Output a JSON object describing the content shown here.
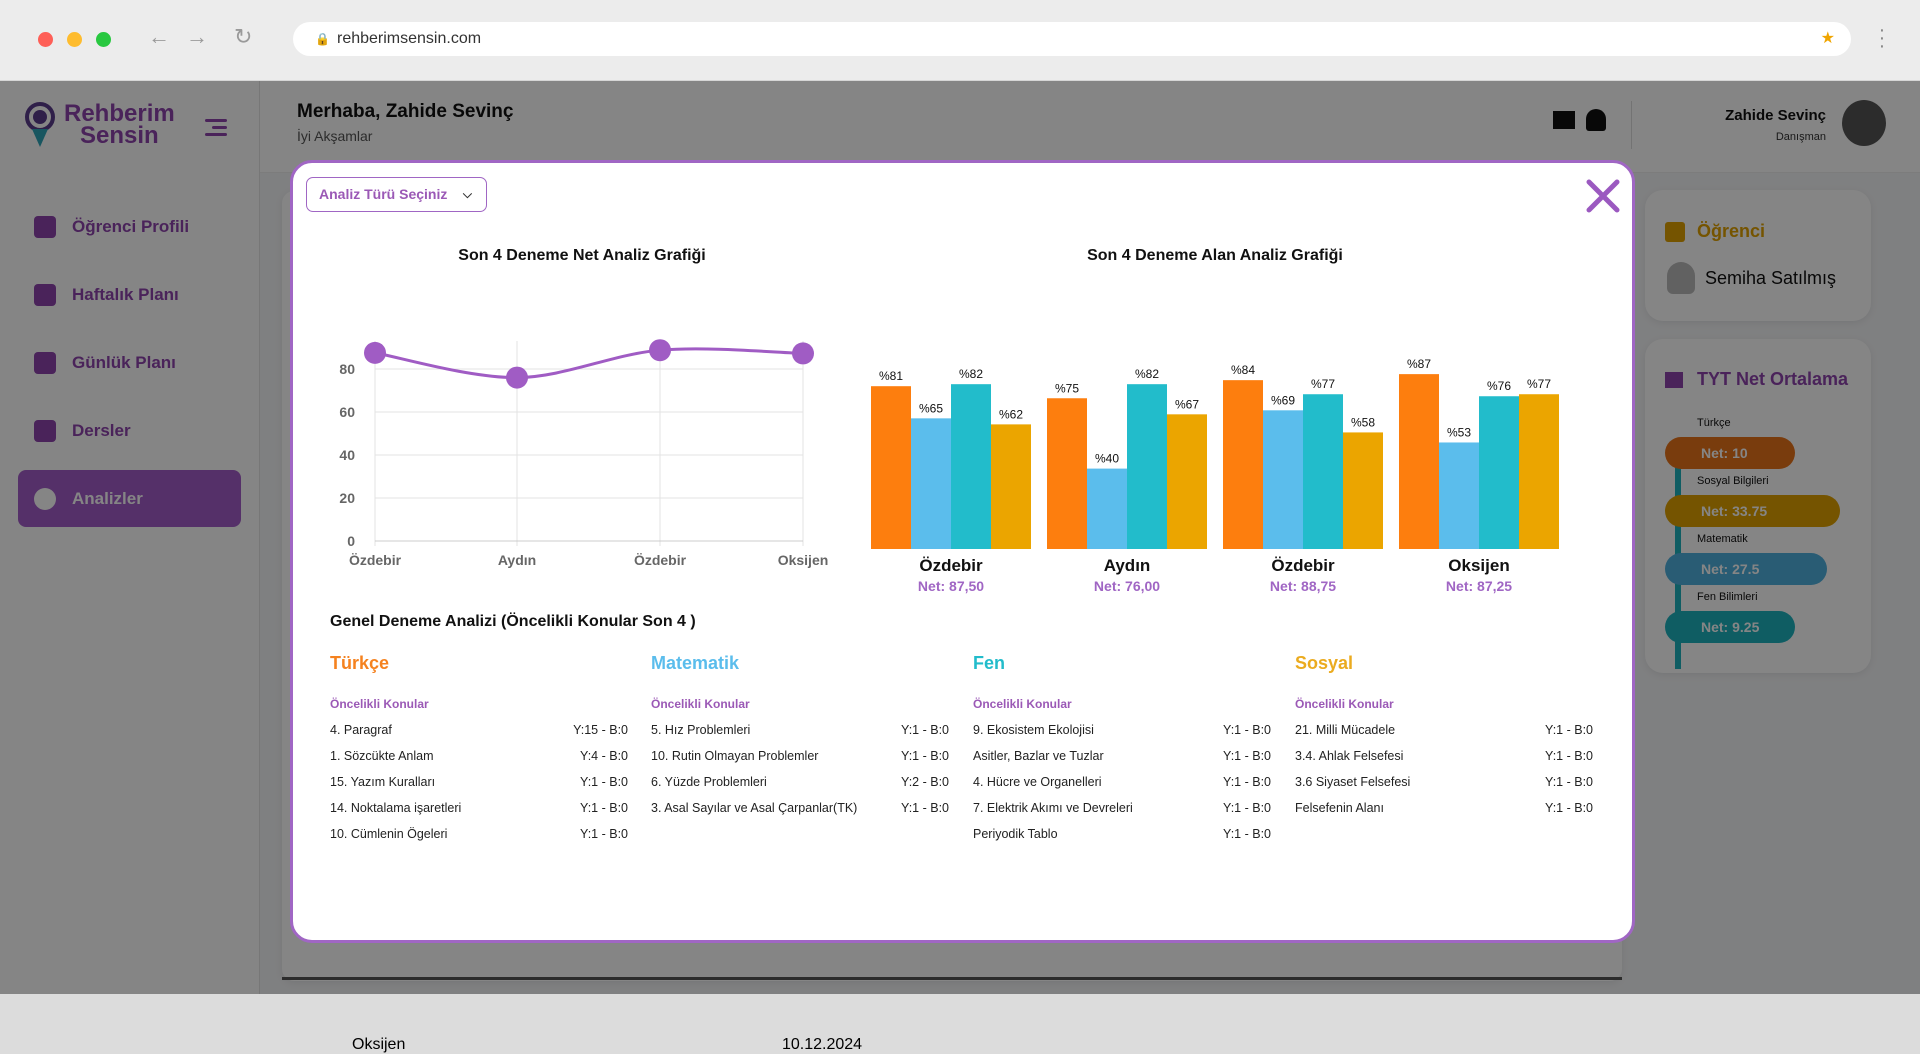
{
  "browser": {
    "url": "rehberimsensin.com"
  },
  "sidebar": {
    "logo_line1": "Rehberim",
    "logo_line2": "Sensin",
    "items": [
      {
        "label": "Öğrenci Profili"
      },
      {
        "label": "Haftalık Planı"
      },
      {
        "label": "Günlük Planı"
      },
      {
        "label": "Dersler"
      },
      {
        "label": "Analizler",
        "active": true
      }
    ]
  },
  "header": {
    "greeting": "Merhaba, Zahide Sevinç",
    "subtitle": "İyi Akşamlar",
    "user_name": "Zahide Sevinç",
    "user_role": "Danışman"
  },
  "right_panel": {
    "student_title": "Öğrenci",
    "student_name": "Semiha Satılmış",
    "net_title": "TYT Net Ortalama",
    "nets": [
      {
        "label": "Türkçe",
        "value": "Net: 10",
        "color": "#e8731a"
      },
      {
        "label": "Sosyal Bilgileri",
        "value": "Net: 33.75",
        "color": "#e0a100"
      },
      {
        "label": "Matematik",
        "value": "Net: 27.5",
        "color": "#4fb0de"
      },
      {
        "label": "Fen Bilimleri",
        "value": "Net: 9.25",
        "color": "#1eb3bf"
      }
    ]
  },
  "background_row": {
    "exam": "Oksijen",
    "date": "10.12.2024"
  },
  "modal": {
    "dropdown_label": "Analiz Türü Seçiniz",
    "general_title": "Genel Deneme Analizi (Öncelikli Konular Son 4 )",
    "priority_label": "Öncelikli Konular",
    "subjects": [
      {
        "name": "Türkçe",
        "color": "#f5821f",
        "topics": [
          [
            "4. Paragraf",
            "Y:15 - B:0"
          ],
          [
            "1. Sözcükte Anlam",
            "Y:4 - B:0"
          ],
          [
            "15. Yazım Kuralları",
            "Y:1 - B:0"
          ],
          [
            "14. Noktalama işaretleri",
            "Y:1 - B:0"
          ],
          [
            "10. Cümlenin Ögeleri",
            "Y:1 - B:0"
          ]
        ]
      },
      {
        "name": "Matematik",
        "color": "#5bbdec",
        "topics": [
          [
            "5. Hız Problemleri",
            "Y:1 - B:0"
          ],
          [
            "10. Rutin Olmayan Problemler",
            "Y:1 - B:0"
          ],
          [
            "6. Yüzde Problemleri",
            "Y:2 - B:0"
          ],
          [
            "3. Asal Sayılar ve Asal Çarpanlar(TK)",
            "Y:1 - B:0"
          ]
        ]
      },
      {
        "name": "Fen",
        "color": "#22bccb",
        "topics": [
          [
            "9. Ekosistem Ekolojisi",
            "Y:1 - B:0"
          ],
          [
            "Asitler, Bazlar ve Tuzlar",
            "Y:1 - B:0"
          ],
          [
            "4. Hücre ve Organelleri",
            "Y:1 - B:0"
          ],
          [
            "7. Elektrik Akımı ve Devreleri",
            "Y:1 - B:0"
          ],
          [
            "Periyodik Tablo",
            "Y:1 - B:0"
          ]
        ]
      },
      {
        "name": "Sosyal",
        "color": "#ebab1f",
        "topics": [
          [
            "21. Milli Mücadele",
            "Y:1 - B:0"
          ],
          [
            "3.4. Ahlak Felsefesi",
            "Y:1 - B:0"
          ],
          [
            "3.6 Siyaset Felsefesi",
            "Y:1 - B:0"
          ],
          [
            "Felsefenin Alanı",
            "Y:1 - B:0"
          ]
        ]
      }
    ]
  },
  "chart_data": [
    {
      "type": "line",
      "title": "Son 4 Deneme Net Analiz Grafiği",
      "categories": [
        "Özdebir",
        "Aydın",
        "Özdebir",
        "Oksijen"
      ],
      "values": [
        87.5,
        76,
        88.75,
        87.25
      ],
      "ylim": [
        0,
        90
      ],
      "yticks": [
        0,
        20,
        40,
        60,
        80
      ],
      "grid": true,
      "color": "#a05cc4"
    },
    {
      "type": "bar",
      "title": "Son 4 Deneme Alan Analiz Grafiği",
      "categories": [
        "Özdebir",
        "Aydın",
        "Özdebir",
        "Oksijen"
      ],
      "nets": [
        "Net: 87,50",
        "Net: 76,00",
        "Net: 88,75",
        "Net: 87,25"
      ],
      "series": [
        {
          "name": "Türkçe",
          "color": "#fd7e0e",
          "values": [
            81,
            75,
            84,
            87
          ]
        },
        {
          "name": "Matematik",
          "color": "#5bbdec",
          "values": [
            65,
            40,
            69,
            53
          ]
        },
        {
          "name": "Fen",
          "color": "#22bccb",
          "values": [
            82,
            82,
            77,
            76
          ]
        },
        {
          "name": "Sosyal",
          "color": "#eba500",
          "values": [
            62,
            67,
            58,
            77
          ]
        }
      ],
      "ylim": [
        0,
        100
      ],
      "label_prefix": "%"
    }
  ]
}
